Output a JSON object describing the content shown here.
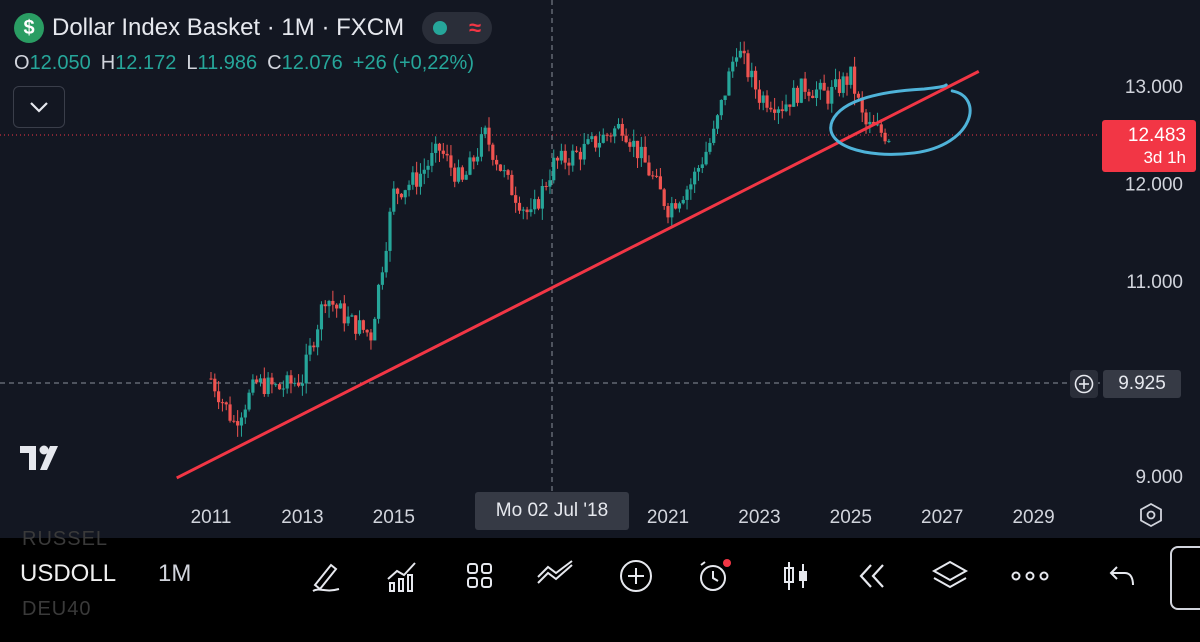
{
  "header": {
    "symbol_logo": "$",
    "title": "Dollar Index Basket · 1M · FXCM",
    "open_label": "O",
    "open": "12.050",
    "high_label": "H",
    "high": "12.172",
    "low_label": "L",
    "low": "11.986",
    "close_label": "C",
    "close": "12.076",
    "change": "+26 (+0,22%)"
  },
  "price_axis": {
    "last_price": "12.483",
    "countdown": "3d 1h",
    "crosshair_price": "9.925"
  },
  "time_axis": {
    "crosshair_date": "Mo 02 Jul '18"
  },
  "colors": {
    "background": "#131722",
    "up": "#26a69a",
    "down": "#ef5350",
    "trendline": "#f23645",
    "annotation": "#4fb3d9",
    "last_price": "#f23645"
  },
  "toolbar": {
    "symbol": "USDOLL",
    "interval": "1M",
    "ghost_above": "RUSSEL",
    "ghost_below": "DEU40",
    "icons": [
      "draw-icon",
      "indicators-icon",
      "templates-icon",
      "compare-icon",
      "add-icon",
      "alert-icon",
      "bar-style-icon",
      "replay-icon",
      "layers-icon",
      "more-icon",
      "undo-icon"
    ]
  },
  "chart_data": {
    "type": "candlestick",
    "title": "Dollar Index Basket · 1M · FXCM",
    "y_ticks": [
      "9.000",
      "11.000",
      "12.000",
      "13.000"
    ],
    "x_ticks": [
      "2011",
      "2013",
      "2015",
      "2021",
      "2023",
      "2025",
      "2027",
      "2029"
    ],
    "ylim": [
      8.5,
      13.6
    ],
    "xlim": [
      2009.25,
      2030.3
    ],
    "grid": false,
    "series": [
      {
        "name": "close",
        "points": [
          [
            2011.0,
            10.0
          ],
          [
            2011.5,
            9.55
          ],
          [
            2012.0,
            9.95
          ],
          [
            2012.5,
            9.9
          ],
          [
            2013.0,
            10.0
          ],
          [
            2013.5,
            10.85
          ],
          [
            2014.0,
            10.6
          ],
          [
            2014.5,
            10.45
          ],
          [
            2015.0,
            11.9
          ],
          [
            2015.5,
            12.05
          ],
          [
            2016.0,
            12.35
          ],
          [
            2016.5,
            12.0
          ],
          [
            2017.0,
            12.5
          ],
          [
            2017.5,
            12.0
          ],
          [
            2018.0,
            11.65
          ],
          [
            2018.5,
            12.2
          ],
          [
            2019.0,
            12.3
          ],
          [
            2019.5,
            12.45
          ],
          [
            2020.0,
            12.6
          ],
          [
            2020.5,
            12.2
          ],
          [
            2021.0,
            11.75
          ],
          [
            2021.5,
            12.0
          ],
          [
            2022.0,
            12.5
          ],
          [
            2022.5,
            13.4
          ],
          [
            2023.0,
            12.9
          ],
          [
            2023.5,
            12.8
          ],
          [
            2024.0,
            13.0
          ],
          [
            2024.5,
            12.9
          ],
          [
            2025.0,
            13.1
          ],
          [
            2025.3,
            12.6
          ],
          [
            2025.9,
            12.48
          ]
        ]
      },
      {
        "name": "trendline",
        "points": [
          [
            2010.25,
            8.98
          ],
          [
            2027.8,
            13.15
          ]
        ]
      }
    ],
    "annotations": [
      "circle near 2025–2026 at trendline"
    ]
  }
}
